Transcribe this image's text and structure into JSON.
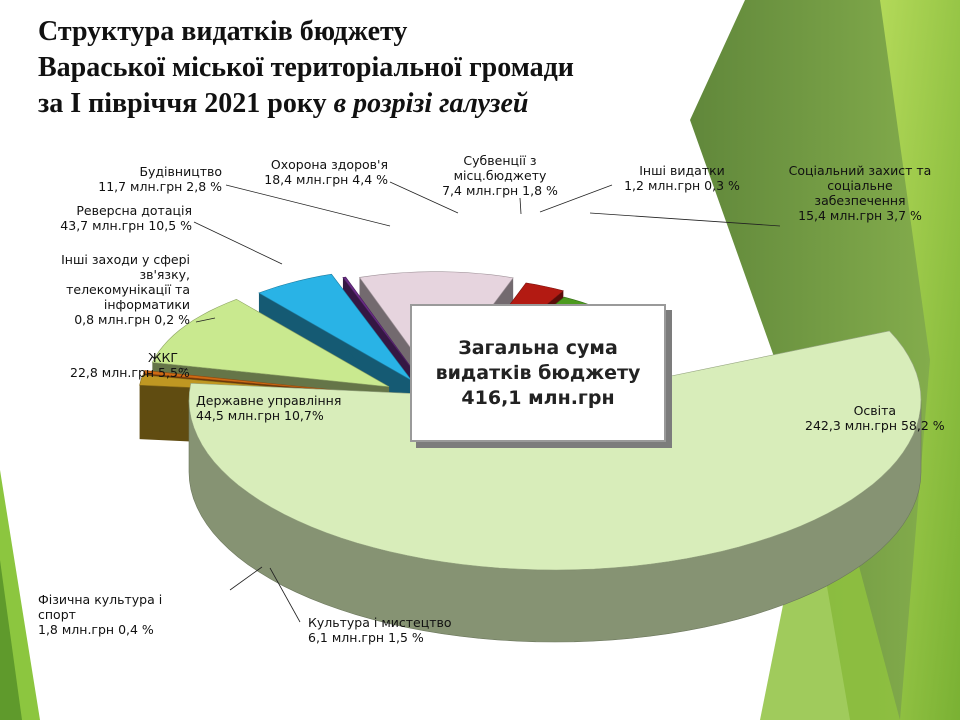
{
  "title": {
    "line1": "Структура видатків бюджету",
    "line2": "Вараської міської територіальної громади",
    "line3_plain": "за І півріччя 2021 року ",
    "line3_italic": "в розрізі галузей"
  },
  "total_box": {
    "line1": "Загальна сума",
    "line2": "видатків бюджету",
    "line3": "416,1 млн.грн"
  },
  "colors": {
    "decor_green_light": "#9bc93a",
    "decor_green_dark": "#5c8a2a"
  },
  "chart_data": {
    "type": "pie",
    "style": "3d-exploded",
    "total": "416,1 млн.грн",
    "slices": [
      {
        "name": "Освіта",
        "value": 242.3,
        "percent": 58.2,
        "label": [
          "Освіта",
          "242,3  млн.грн  58,2 %"
        ],
        "color": "#d8edba"
      },
      {
        "name": "Культура і мистецтво",
        "value": 6.1,
        "percent": 1.5,
        "label": [
          "Культура і мистецтво",
          "6,1 млн.грн   1,5 %"
        ],
        "color": "#bf9722"
      },
      {
        "name": "Фізична культура і спорт",
        "value": 1.8,
        "percent": 0.4,
        "label": [
          "Фізична культура і",
          "спорт",
          "1,8 млн.грн   0,4 %"
        ],
        "color": "#cf6a14"
      },
      {
        "name": "Державне управління",
        "value": 44.5,
        "percent": 10.7,
        "label": [
          "Державне управління",
          "44,5 млн.грн   10,7%"
        ],
        "color": "#c9e98f"
      },
      {
        "name": "ЖКГ",
        "value": 22.8,
        "percent": 5.5,
        "label": [
          "ЖКГ",
          "22,8 млн.грн  5,5%"
        ],
        "color": "#29b3e6"
      },
      {
        "name": "Інші заходи у сфері зв'язку, телекомунікації та інформатики",
        "value": 0.8,
        "percent": 0.2,
        "label": [
          "Інші заходи у сфері",
          "зв'язку,",
          "телекомунікації та",
          "інформатики",
          "0,8 млн.грн   0,2 %"
        ],
        "color": "#6a2d86"
      },
      {
        "name": "Реверсна дотація",
        "value": 43.7,
        "percent": 10.5,
        "label": [
          "Реверсна дотація",
          "43,7 млн.грн  10,5 %"
        ],
        "color": "#e6d4de"
      },
      {
        "name": "Будівництво",
        "value": 11.7,
        "percent": 2.8,
        "label": [
          "Будівництво",
          "11,7 млн.грн 2,8 %"
        ],
        "color": "#b31a12"
      },
      {
        "name": "Охорона здоров'я",
        "value": 18.4,
        "percent": 4.4,
        "label": [
          "Охорона здоров'я",
          "18,4 млн.грн 4,4 %"
        ],
        "color": "#4c9a1e"
      },
      {
        "name": "Субвенції з місц.бюджету",
        "value": 7.4,
        "percent": 1.8,
        "label": [
          "Субвенції з",
          "місц.бюджету",
          "7,4 млн.грн   1,8 %"
        ],
        "color": "#e3b42a"
      },
      {
        "name": "Інші видатки",
        "value": 1.2,
        "percent": 0.3,
        "label": [
          "Інші видатки",
          "1,2 млн.грн 0,3 %"
        ],
        "color": "#e86418"
      },
      {
        "name": "Соціальний захист та соціальне забезпечення",
        "value": 15.4,
        "percent": 3.7,
        "label": [
          "Соціальний захист та",
          "соціальне",
          "забезпечення",
          "15,4  млн.грн 3,7 %"
        ],
        "color": "#c9281c"
      }
    ]
  }
}
